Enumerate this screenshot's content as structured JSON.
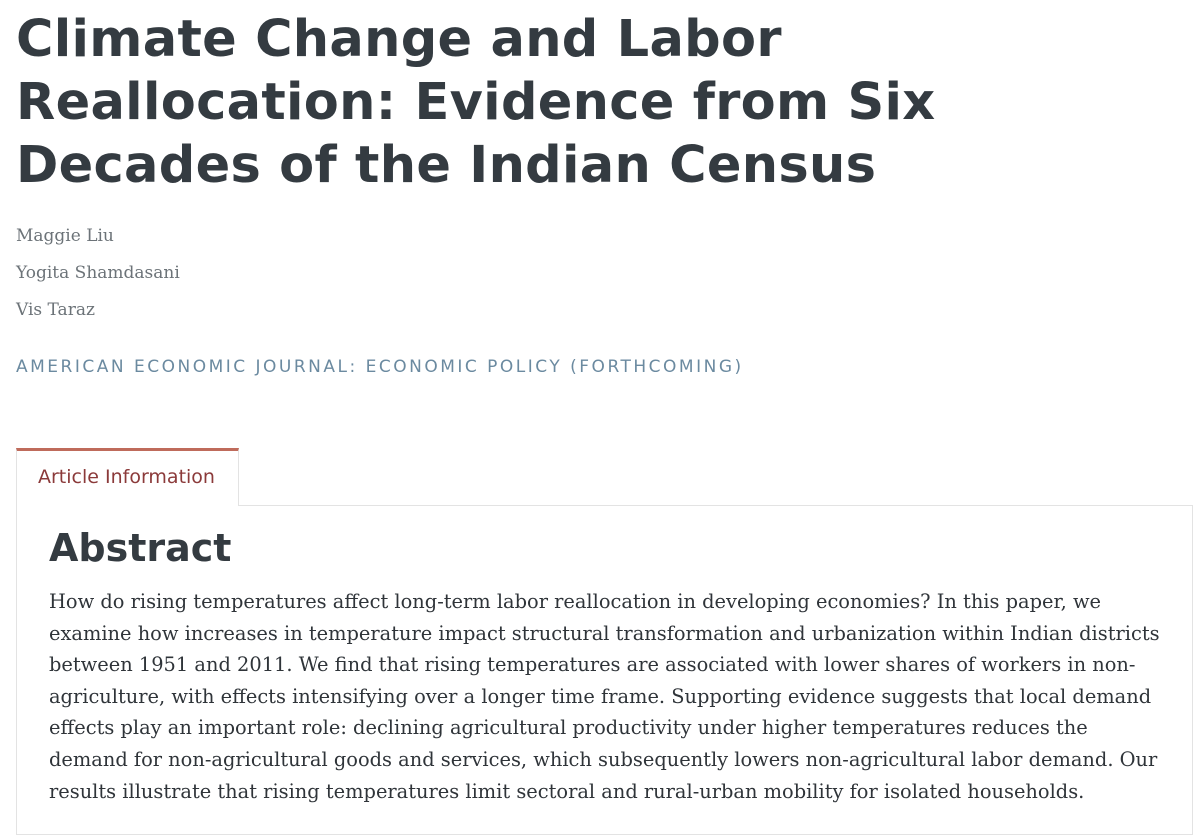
{
  "article": {
    "title": "Climate Change and Labor Reallocation: Evidence from Six Decades of the Indian Census",
    "authors": [
      "Maggie Liu",
      "Yogita Shamdasani",
      "Vis Taraz"
    ],
    "journal": "AMERICAN ECONOMIC JOURNAL: ECONOMIC POLICY (FORTHCOMING)"
  },
  "tabs": [
    {
      "label": "Article Information",
      "active": true
    }
  ],
  "abstract": {
    "heading": "Abstract",
    "text": "How do rising temperatures affect long-term labor reallocation in developing economies? In this paper, we examine how increases in temperature impact structural transformation and urbanization within Indian districts between 1951 and 2011. We find that rising temperatures are associated with lower shares of workers in non-agriculture, with effects intensifying over a longer time frame. Supporting evidence suggests that local demand effects play an important role: declining agricultural productivity under higher temperatures reduces the demand for non-agricultural goods and services, which subsequently lowers non-agricultural labor demand. Our results illustrate that rising temperatures limit sectoral and rural-urban mobility for isolated households."
  },
  "colors": {
    "title": "#343b41",
    "journal": "#6b8aa0",
    "tab_accent": "#bf6b5b",
    "tab_label": "#8b3a3a"
  }
}
